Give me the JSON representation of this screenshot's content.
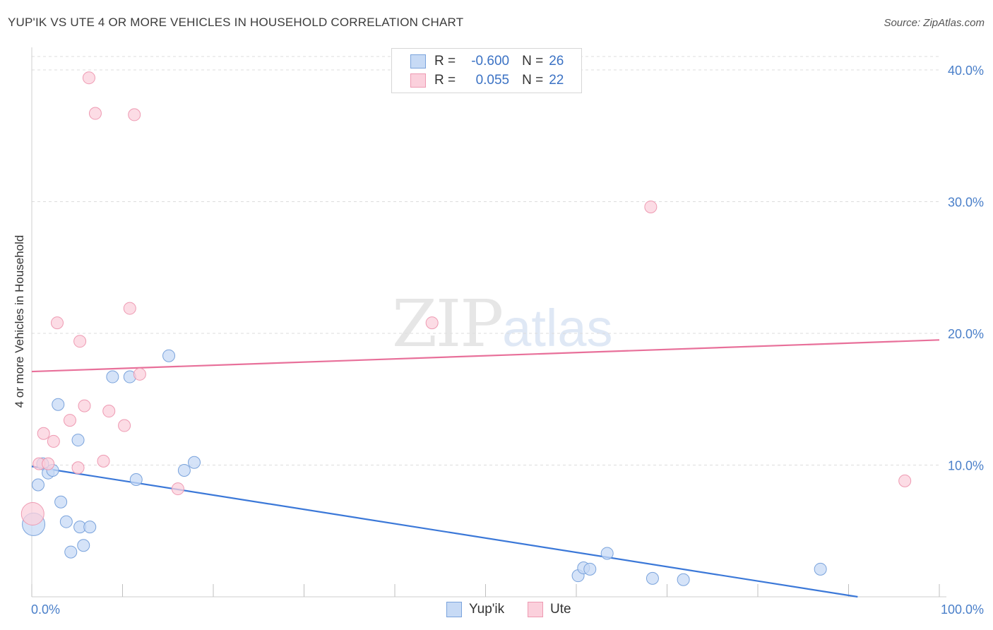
{
  "header": {
    "title": "YUP'IK VS UTE 4 OR MORE VEHICLES IN HOUSEHOLD CORRELATION CHART",
    "source": "Source: ZipAtlas.com"
  },
  "watermark": {
    "zip": "ZIP",
    "atlas": "atlas"
  },
  "legend": {
    "rows": [
      {
        "r_label": "R =",
        "r_value": "-0.600",
        "n_label": "N =",
        "n_value": "26",
        "color_fill": "#c7daf5",
        "color_stroke": "#7aa3dc"
      },
      {
        "r_label": "R =",
        "r_value": "0.055",
        "n_label": "N =",
        "n_value": "22",
        "color_fill": "#fbd0dc",
        "color_stroke": "#ee9ab2"
      }
    ]
  },
  "bottom_legend": [
    {
      "label": "Yup'ik",
      "color_fill": "#c7daf5",
      "color_stroke": "#7aa3dc"
    },
    {
      "label": "Ute",
      "color_fill": "#fbd0dc",
      "color_stroke": "#ee9ab2"
    }
  ],
  "chart_data": {
    "type": "scatter",
    "title": "YUP'IK VS UTE 4 OR MORE VEHICLES IN HOUSEHOLD CORRELATION CHART",
    "xlabel": "",
    "ylabel": "4 or more Vehicles in Household",
    "xlim": [
      0,
      100
    ],
    "ylim": [
      0,
      40
    ],
    "x_tick_labels": [
      "0.0%",
      "100.0%"
    ],
    "y_ticks": [
      10,
      20,
      30,
      40
    ],
    "y_tick_labels": [
      "10.0%",
      "20.0%",
      "30.0%",
      "40.0%"
    ],
    "grid": true,
    "series": [
      {
        "name": "Yup'ik",
        "color": "#7aa3dc",
        "fill": "#c7daf5",
        "line_color": "#3b78d8",
        "trend": {
          "x": [
            0,
            91
          ],
          "y": [
            9.9,
            0
          ]
        },
        "points": [
          {
            "x": 0.2,
            "y": 5.5,
            "big": true
          },
          {
            "x": 0.7,
            "y": 8.5
          },
          {
            "x": 1.2,
            "y": 10.1
          },
          {
            "x": 1.8,
            "y": 9.4
          },
          {
            "x": 2.3,
            "y": 9.6
          },
          {
            "x": 2.9,
            "y": 14.6
          },
          {
            "x": 3.2,
            "y": 7.2
          },
          {
            "x": 3.8,
            "y": 5.7
          },
          {
            "x": 4.3,
            "y": 3.4
          },
          {
            "x": 5.1,
            "y": 11.9
          },
          {
            "x": 5.3,
            "y": 5.3
          },
          {
            "x": 5.7,
            "y": 3.9
          },
          {
            "x": 6.4,
            "y": 5.3
          },
          {
            "x": 8.9,
            "y": 16.7
          },
          {
            "x": 10.8,
            "y": 16.7
          },
          {
            "x": 11.5,
            "y": 8.9
          },
          {
            "x": 15.1,
            "y": 18.3
          },
          {
            "x": 16.8,
            "y": 9.6
          },
          {
            "x": 17.9,
            "y": 10.2
          },
          {
            "x": 60.2,
            "y": 1.6
          },
          {
            "x": 60.8,
            "y": 2.2
          },
          {
            "x": 61.5,
            "y": 2.1
          },
          {
            "x": 63.4,
            "y": 3.3
          },
          {
            "x": 68.4,
            "y": 1.4
          },
          {
            "x": 71.8,
            "y": 1.3
          },
          {
            "x": 86.9,
            "y": 2.1
          }
        ]
      },
      {
        "name": "Ute",
        "color": "#ee9ab2",
        "fill": "#fbd0dc",
        "line_color": "#e8709a",
        "trend": {
          "x": [
            0,
            100
          ],
          "y": [
            17.1,
            19.5
          ]
        },
        "points": [
          {
            "x": 0.1,
            "y": 6.3,
            "big": true
          },
          {
            "x": 0.8,
            "y": 10.1
          },
          {
            "x": 1.3,
            "y": 12.4
          },
          {
            "x": 1.8,
            "y": 10.1
          },
          {
            "x": 2.4,
            "y": 11.8
          },
          {
            "x": 2.8,
            "y": 20.8
          },
          {
            "x": 4.2,
            "y": 13.4
          },
          {
            "x": 5.1,
            "y": 9.8
          },
          {
            "x": 5.3,
            "y": 19.4
          },
          {
            "x": 5.8,
            "y": 14.5
          },
          {
            "x": 6.3,
            "y": 39.4
          },
          {
            "x": 7.0,
            "y": 36.7
          },
          {
            "x": 7.9,
            "y": 10.3
          },
          {
            "x": 8.5,
            "y": 14.1
          },
          {
            "x": 10.2,
            "y": 13.0
          },
          {
            "x": 10.8,
            "y": 21.9
          },
          {
            "x": 11.3,
            "y": 36.6
          },
          {
            "x": 11.9,
            "y": 16.9
          },
          {
            "x": 16.1,
            "y": 8.2
          },
          {
            "x": 44.1,
            "y": 20.8
          },
          {
            "x": 68.2,
            "y": 29.6
          },
          {
            "x": 96.2,
            "y": 8.8
          }
        ]
      }
    ]
  }
}
